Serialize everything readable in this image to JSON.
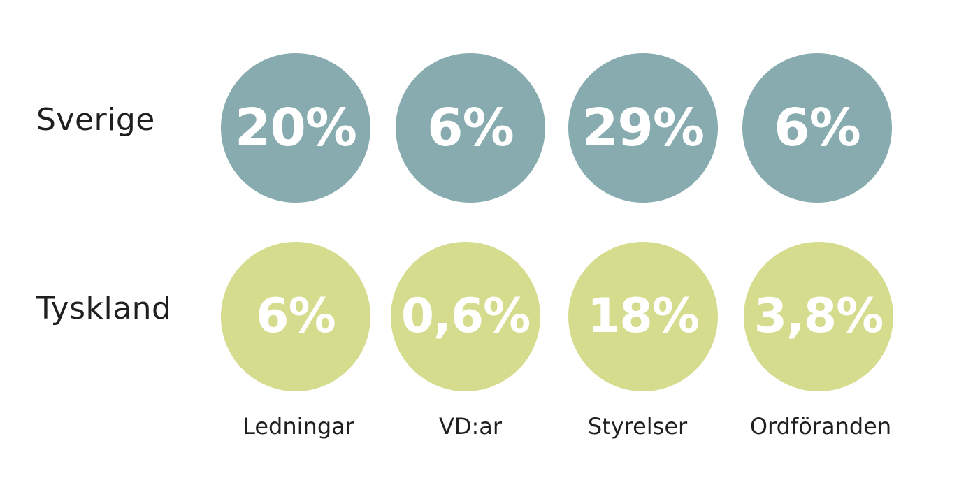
{
  "chart_data": {
    "type": "table",
    "categories": [
      "Ledningar",
      "VD:ar",
      "Styrelser",
      "Ordföranden"
    ],
    "series": [
      {
        "name": "Sverige",
        "color": "#87abaf",
        "labels": [
          "20%",
          "6%",
          "29%",
          "6%"
        ],
        "values": [
          20,
          6,
          29,
          6
        ]
      },
      {
        "name": "Tyskland",
        "color": "#d6dc8e",
        "labels": [
          "6%",
          "0,6%",
          "18%",
          "3,8%"
        ],
        "values": [
          6,
          0.6,
          18,
          3.8
        ]
      }
    ]
  }
}
